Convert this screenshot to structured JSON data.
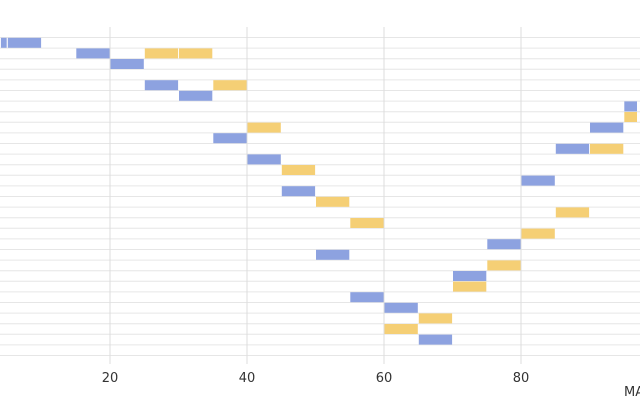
{
  "chart_data": {
    "type": "gantt",
    "xlabel": "MA",
    "xticks": [
      20,
      40,
      60,
      80
    ],
    "xlim": [
      4,
      97
    ],
    "row_count": 30,
    "grid": true,
    "colors": {
      "series_a": "#8da2e0",
      "series_b": "#f5cf75",
      "grid": "#dddddd"
    },
    "segments": [
      {
        "row": 0,
        "start": 4,
        "end": 5,
        "series": "series_a"
      },
      {
        "row": 0,
        "start": 5,
        "end": 10,
        "series": "series_a"
      },
      {
        "row": 1,
        "start": 15,
        "end": 20,
        "series": "series_a"
      },
      {
        "row": 1,
        "start": 25,
        "end": 30,
        "series": "series_b"
      },
      {
        "row": 1,
        "start": 30,
        "end": 35,
        "series": "series_b"
      },
      {
        "row": 2,
        "start": 20,
        "end": 25,
        "series": "series_a"
      },
      {
        "row": 4,
        "start": 25,
        "end": 30,
        "series": "series_a"
      },
      {
        "row": 4,
        "start": 35,
        "end": 40,
        "series": "series_b"
      },
      {
        "row": 5,
        "start": 30,
        "end": 35,
        "series": "series_a"
      },
      {
        "row": 6,
        "start": 95,
        "end": 97,
        "series": "series_a"
      },
      {
        "row": 7,
        "start": 95,
        "end": 97,
        "series": "series_b"
      },
      {
        "row": 8,
        "start": 40,
        "end": 45,
        "series": "series_b"
      },
      {
        "row": 8,
        "start": 90,
        "end": 95,
        "series": "series_a"
      },
      {
        "row": 9,
        "start": 35,
        "end": 40,
        "series": "series_a"
      },
      {
        "row": 10,
        "start": 85,
        "end": 90,
        "series": "series_a"
      },
      {
        "row": 10,
        "start": 90,
        "end": 95,
        "series": "series_b"
      },
      {
        "row": 11,
        "start": 40,
        "end": 45,
        "series": "series_a"
      },
      {
        "row": 12,
        "start": 45,
        "end": 50,
        "series": "series_b"
      },
      {
        "row": 13,
        "start": 80,
        "end": 85,
        "series": "series_a"
      },
      {
        "row": 14,
        "start": 45,
        "end": 50,
        "series": "series_a"
      },
      {
        "row": 15,
        "start": 50,
        "end": 55,
        "series": "series_b"
      },
      {
        "row": 16,
        "start": 85,
        "end": 90,
        "series": "series_b"
      },
      {
        "row": 17,
        "start": 55,
        "end": 60,
        "series": "series_b"
      },
      {
        "row": 18,
        "start": 80,
        "end": 85,
        "series": "series_b"
      },
      {
        "row": 19,
        "start": 75,
        "end": 80,
        "series": "series_a"
      },
      {
        "row": 20,
        "start": 50,
        "end": 55,
        "series": "series_a"
      },
      {
        "row": 21,
        "start": 75,
        "end": 80,
        "series": "series_b"
      },
      {
        "row": 22,
        "start": 70,
        "end": 75,
        "series": "series_a"
      },
      {
        "row": 23,
        "start": 70,
        "end": 75,
        "series": "series_b"
      },
      {
        "row": 24,
        "start": 55,
        "end": 60,
        "series": "series_a"
      },
      {
        "row": 25,
        "start": 60,
        "end": 65,
        "series": "series_a"
      },
      {
        "row": 26,
        "start": 65,
        "end": 70,
        "series": "series_b"
      },
      {
        "row": 27,
        "start": 60,
        "end": 65,
        "series": "series_b"
      },
      {
        "row": 28,
        "start": 65,
        "end": 70,
        "series": "series_a"
      }
    ]
  }
}
